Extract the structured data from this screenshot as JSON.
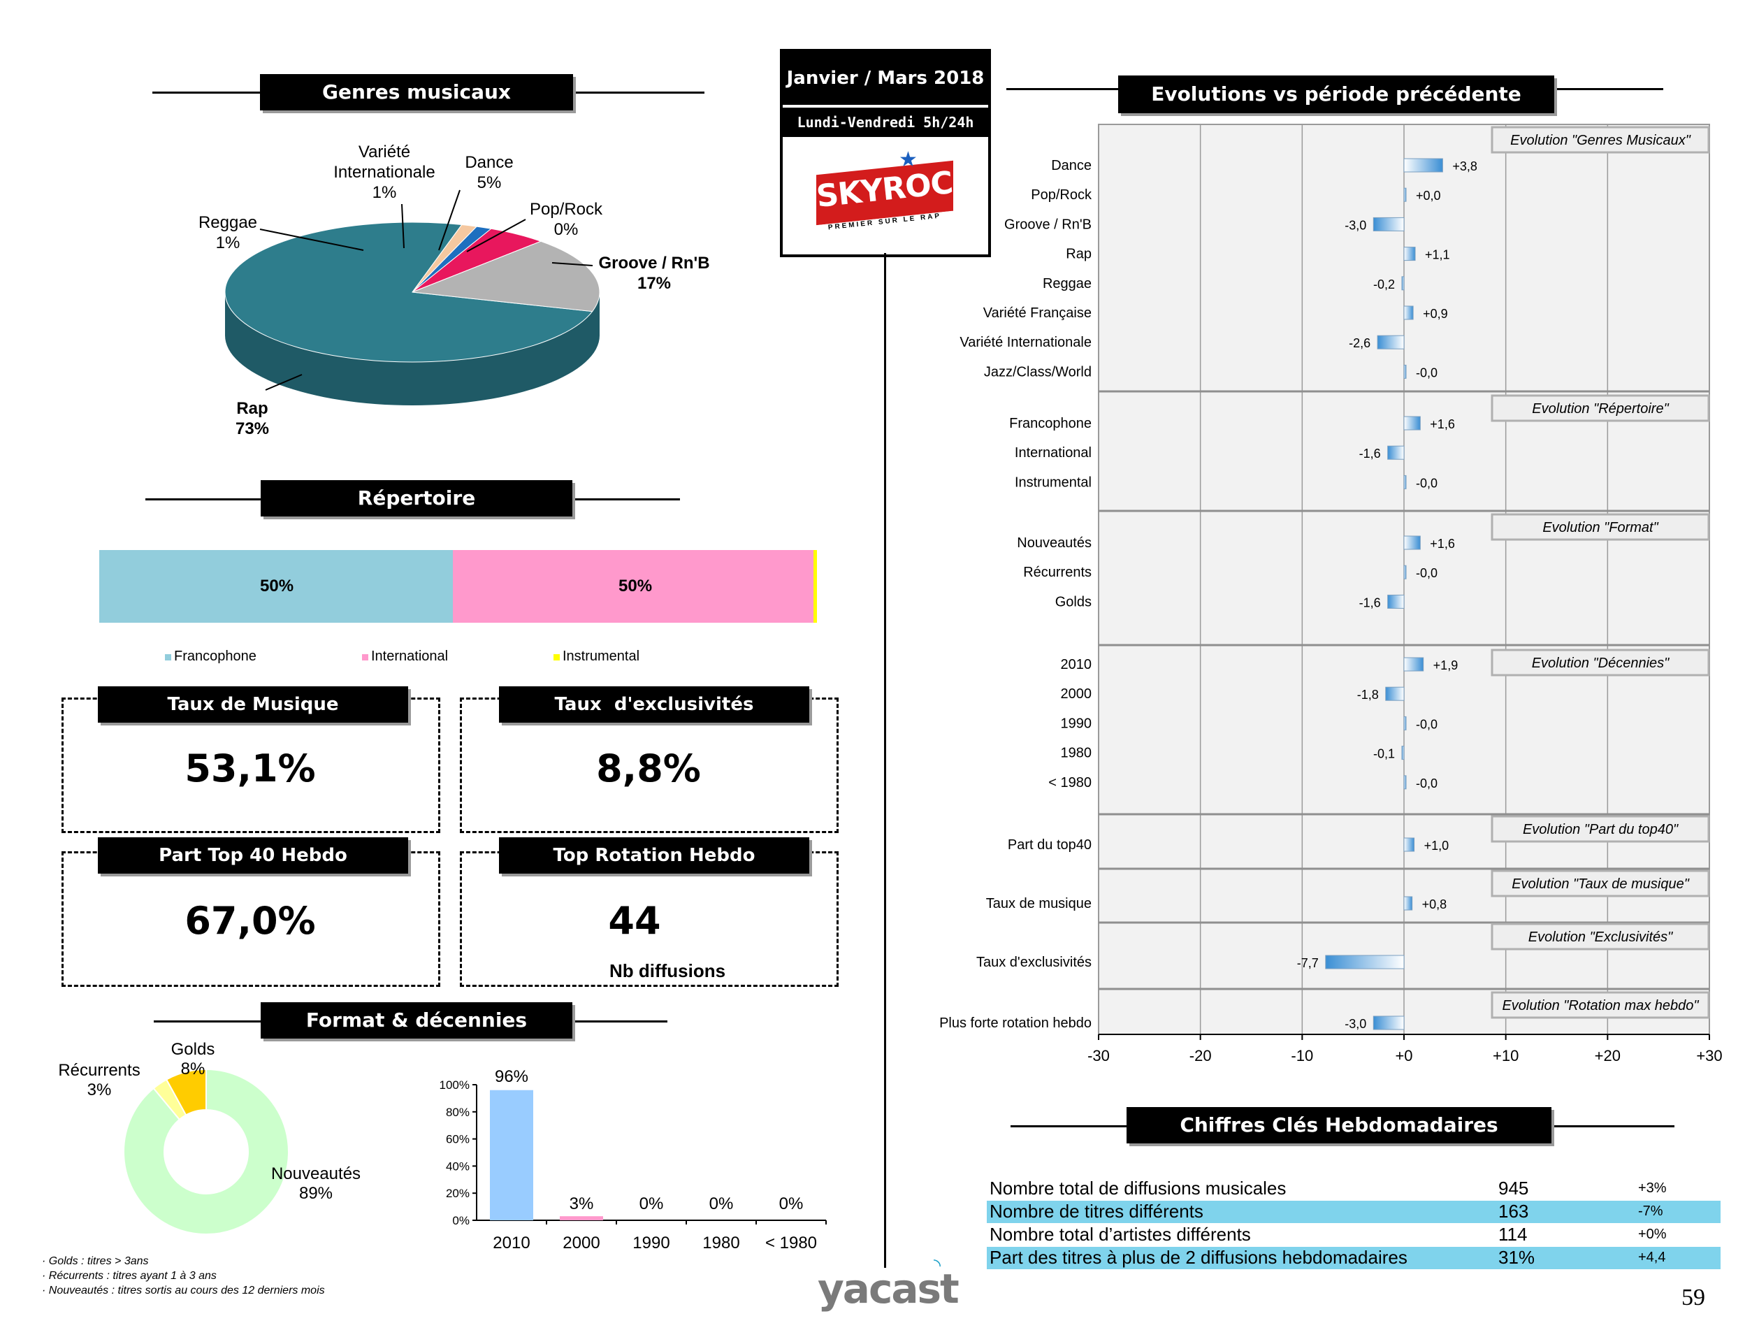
{
  "header": {
    "period": "Janvier / Mars 2018",
    "schedule": "Lundi-Vendredi 5h/24h",
    "logo_text": "SKYROCK",
    "logo_tagline": "PREMIER SUR LE RAP"
  },
  "sections": {
    "genres": "Genres musicaux",
    "repertoire": "Répertoire",
    "format": "Format & décennies",
    "evolutions": "Evolutions vs période précédente",
    "chiffres": "Chiffres Clés Hebdomadaires"
  },
  "kpis": {
    "taux_musique": {
      "title": "Taux de Musique",
      "value": "53,1%"
    },
    "taux_excl": {
      "title": "Taux  d'exclusivités",
      "value": "8,8%"
    },
    "part_top40": {
      "title": "Part Top 40 Hebdo",
      "value": "67,0%"
    },
    "top_rotation": {
      "title": "Top Rotation Hebdo",
      "value": "44",
      "sub": "Nb diffusions"
    }
  },
  "footnotes": [
    "· Golds : titres > 3ans",
    "· Récurrents : titres ayant  1 à 3 ans",
    "· Nouveautés  : titres sortis au cours des 12 derniers mois"
  ],
  "footer": {
    "brand": "yacast",
    "page": "59"
  },
  "colors": {
    "rap": "#2e7d8c",
    "groove": "#b3b3b3",
    "dance": "#e8175d",
    "pink_accent": "#cc8888",
    "reggae": "#f5c8a0",
    "francophone": "#92cddc",
    "international": "#ff99cc",
    "instrumental": "#ffff00",
    "nouveautes": "#ccffcc",
    "recurrents": "#ffff99",
    "golds": "#ffcc00",
    "decade_bar": "#99ccff",
    "decade_bar2": "#ff99cc",
    "hl": "#7fd3ec"
  },
  "chart_data": [
    {
      "type": "pie",
      "title": "Genres musicaux",
      "slices": [
        {
          "name": "Rap",
          "value": 73,
          "label": "73%"
        },
        {
          "name": "Reggae",
          "value": 1,
          "label": "1%"
        },
        {
          "name": "Variété Internationale",
          "value": 1,
          "label": "1%"
        },
        {
          "name": "Dance",
          "value": 5,
          "label": "5%"
        },
        {
          "name": "Pop/Rock",
          "value": 0,
          "label": "0%"
        },
        {
          "name": "Groove / Rn'B",
          "value": 17,
          "label": "17%"
        }
      ],
      "labels": {
        "var_int_1": "Variété",
        "var_int_2": "Internationale",
        "var_int_pct": "1%",
        "dance": "Dance",
        "dance_pct": "5%",
        "reggae": "Reggae",
        "reggae_pct": "1%",
        "pop": "Pop/Rock",
        "pop_pct": "0%",
        "groove": "Groove / Rn'B",
        "groove_pct": "17%",
        "rap": "Rap",
        "rap_pct": "73%"
      }
    },
    {
      "type": "bar",
      "title": "Répertoire",
      "stacked": true,
      "series": [
        {
          "name": "Francophone",
          "value": 50,
          "label": "50%"
        },
        {
          "name": "International",
          "value": 50,
          "label": "50%"
        },
        {
          "name": "Instrumental",
          "value": 0.5
        }
      ]
    },
    {
      "type": "pie",
      "subtype": "donut",
      "slices": [
        {
          "name": "Nouveautés",
          "value": 89,
          "label": "89%"
        },
        {
          "name": "Récurrents",
          "value": 3,
          "label": "3%"
        },
        {
          "name": "Golds",
          "value": 8,
          "label": "8%"
        }
      ]
    },
    {
      "type": "bar",
      "categories": [
        "2010",
        "2000",
        "1990",
        "1980",
        "< 1980"
      ],
      "values": [
        96,
        3,
        0,
        0,
        0
      ],
      "value_labels": [
        "96%",
        "3%",
        "0%",
        "0%",
        "0%"
      ],
      "ylim": [
        0,
        100
      ],
      "yticks": [
        "0%",
        "20%",
        "40%",
        "60%",
        "80%",
        "100%"
      ]
    },
    {
      "type": "bar",
      "orientation": "horizontal",
      "title": "Evolutions vs période précédente",
      "xlim": [
        -30,
        30
      ],
      "xticks": [
        "-30",
        "-20",
        "-10",
        "+0",
        "+10",
        "+20",
        "+30"
      ],
      "groups": [
        {
          "title": "Evolution \"Genres Musicaux\"",
          "rows": [
            {
              "label": "Dance",
              "value": 3.8,
              "text": "+3,8"
            },
            {
              "label": "Pop/Rock",
              "value": 0.0,
              "text": "+0,0"
            },
            {
              "label": "Groove / Rn'B",
              "value": -3.0,
              "text": "-3,0"
            },
            {
              "label": "Rap",
              "value": 1.1,
              "text": "+1,1"
            },
            {
              "label": "Reggae",
              "value": -0.2,
              "text": "-0,2"
            },
            {
              "label": "Variété Française",
              "value": 0.9,
              "text": "+0,9"
            },
            {
              "label": "Variété Internationale",
              "value": -2.6,
              "text": "-2,6"
            },
            {
              "label": "Jazz/Class/World",
              "value": -0.0,
              "text": "-0,0"
            }
          ]
        },
        {
          "title": "Evolution \"Répertoire\"",
          "rows": [
            {
              "label": "Francophone",
              "value": 1.6,
              "text": "+1,6"
            },
            {
              "label": "International",
              "value": -1.6,
              "text": "-1,6"
            },
            {
              "label": "Instrumental",
              "value": -0.0,
              "text": "-0,0"
            }
          ]
        },
        {
          "title": "Evolution \"Format\"",
          "rows": [
            {
              "label": "Nouveautés",
              "value": 1.6,
              "text": "+1,6"
            },
            {
              "label": "Récurrents",
              "value": -0.0,
              "text": "-0,0"
            },
            {
              "label": "Golds",
              "value": -1.6,
              "text": "-1,6"
            }
          ]
        },
        {
          "title": "Evolution \"Décennies\"",
          "rows": [
            {
              "label": "2010",
              "value": 1.9,
              "text": "+1,9"
            },
            {
              "label": "2000",
              "value": -1.8,
              "text": "-1,8"
            },
            {
              "label": "1990",
              "value": -0.0,
              "text": "-0,0"
            },
            {
              "label": "1980",
              "value": -0.1,
              "text": "-0,1"
            },
            {
              "label": "< 1980",
              "value": -0.0,
              "text": "-0,0"
            }
          ]
        },
        {
          "title": "Evolution \"Part du top40\"",
          "rows": [
            {
              "label": "Part du top40",
              "value": 1.0,
              "text": "+1,0"
            }
          ]
        },
        {
          "title": "Evolution \"Taux  de musique\"",
          "rows": [
            {
              "label": "Taux de musique",
              "value": 0.8,
              "text": "+0,8"
            }
          ]
        },
        {
          "title": "Evolution \"Exclusivités\"",
          "rows": [
            {
              "label": "Taux d'exclusivités",
              "value": -7.7,
              "text": "-7,7"
            }
          ]
        },
        {
          "title": "Evolution \"Rotation max hebdo\"",
          "rows": [
            {
              "label": "Plus forte rotation hebdo",
              "value": -3.0,
              "text": "-3,0"
            }
          ]
        }
      ]
    },
    {
      "type": "table",
      "title": "Chiffres Clés Hebdomadaires",
      "rows": [
        {
          "label": "Nombre total de diffusions musicales",
          "value": "945",
          "change": "+3%"
        },
        {
          "label": "Nombre de titres différents",
          "value": "163",
          "change": "-7%"
        },
        {
          "label": "Nombre total d’artistes différents",
          "value": "114",
          "change": "+0%"
        },
        {
          "label": "Part des titres à plus de 2 diffusions hebdomadaires",
          "value": "31%",
          "change": "+4,4"
        }
      ]
    }
  ]
}
